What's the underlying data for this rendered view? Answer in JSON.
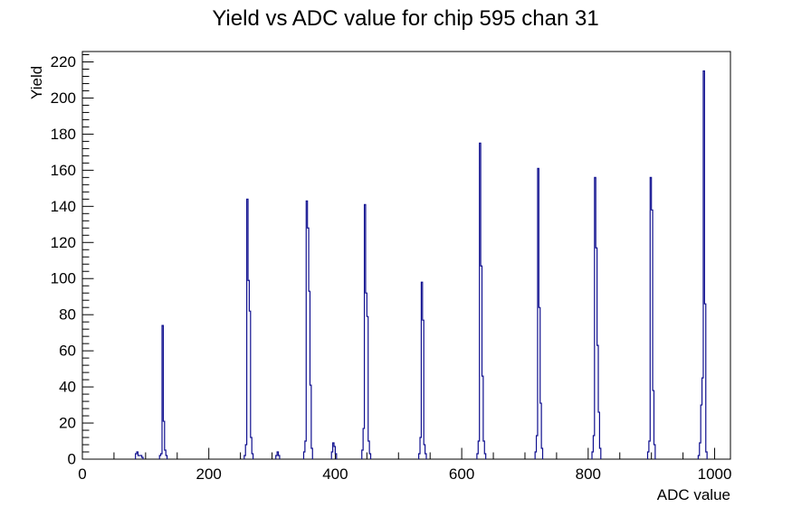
{
  "chart_data": {
    "type": "bar",
    "title": "Yield vs ADC value for chip 595 chan 31",
    "xlabel": "ADC value",
    "ylabel": "Yield",
    "xlim": [
      0,
      1025
    ],
    "ylim": [
      0,
      225.75
    ],
    "x_major_ticks": [
      0,
      200,
      400,
      600,
      800,
      1000
    ],
    "x_minor_step": 50,
    "y_major_ticks": [
      0,
      20,
      40,
      60,
      80,
      100,
      120,
      140,
      160,
      180,
      200,
      220
    ],
    "y_minor_step": 4,
    "grid": false,
    "legend": "none",
    "bin_width": 2,
    "style": {
      "line_color": "#0f0f8f",
      "axis_color": "#000000",
      "background": "#ffffff"
    },
    "peak_positions": [
      126,
      260,
      354,
      446,
      536,
      628,
      720,
      810,
      898,
      982
    ],
    "peak_heights": [
      74,
      144,
      143,
      141,
      98,
      175,
      161,
      156,
      156,
      215
    ],
    "bins": [
      [
        84,
        3
      ],
      [
        86,
        4
      ],
      [
        88,
        2
      ],
      [
        90,
        2
      ],
      [
        92,
        2
      ],
      [
        94,
        1
      ],
      [
        122,
        2
      ],
      [
        124,
        3
      ],
      [
        126,
        74
      ],
      [
        128,
        21
      ],
      [
        130,
        5
      ],
      [
        132,
        2
      ],
      [
        256,
        2
      ],
      [
        258,
        8
      ],
      [
        260,
        144
      ],
      [
        262,
        99
      ],
      [
        264,
        82
      ],
      [
        266,
        12
      ],
      [
        268,
        3
      ],
      [
        306,
        2
      ],
      [
        308,
        4
      ],
      [
        310,
        2
      ],
      [
        350,
        4
      ],
      [
        352,
        10
      ],
      [
        354,
        143
      ],
      [
        356,
        128
      ],
      [
        358,
        93
      ],
      [
        360,
        41
      ],
      [
        362,
        6
      ],
      [
        394,
        4
      ],
      [
        396,
        9
      ],
      [
        398,
        7
      ],
      [
        400,
        3
      ],
      [
        442,
        5
      ],
      [
        444,
        17
      ],
      [
        446,
        141
      ],
      [
        448,
        92
      ],
      [
        450,
        79
      ],
      [
        452,
        10
      ],
      [
        454,
        3
      ],
      [
        532,
        3
      ],
      [
        534,
        12
      ],
      [
        536,
        98
      ],
      [
        538,
        77
      ],
      [
        540,
        8
      ],
      [
        542,
        3
      ],
      [
        624,
        3
      ],
      [
        626,
        10
      ],
      [
        628,
        175
      ],
      [
        630,
        107
      ],
      [
        632,
        46
      ],
      [
        634,
        10
      ],
      [
        636,
        3
      ],
      [
        716,
        4
      ],
      [
        718,
        13
      ],
      [
        720,
        161
      ],
      [
        722,
        84
      ],
      [
        724,
        31
      ],
      [
        726,
        6
      ],
      [
        806,
        4
      ],
      [
        808,
        13
      ],
      [
        810,
        156
      ],
      [
        812,
        117
      ],
      [
        814,
        63
      ],
      [
        816,
        26
      ],
      [
        818,
        6
      ],
      [
        894,
        4
      ],
      [
        896,
        10
      ],
      [
        898,
        156
      ],
      [
        900,
        138
      ],
      [
        902,
        38
      ],
      [
        904,
        8
      ],
      [
        974,
        2
      ],
      [
        976,
        9
      ],
      [
        978,
        30
      ],
      [
        980,
        45
      ],
      [
        982,
        215
      ],
      [
        984,
        86
      ],
      [
        986,
        4
      ]
    ]
  }
}
